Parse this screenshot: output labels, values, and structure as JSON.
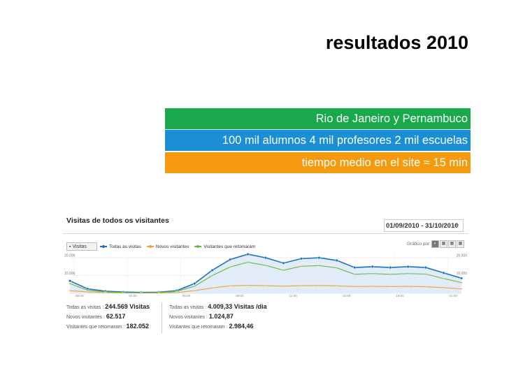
{
  "slide": {
    "title": "resultados 2010",
    "bands": [
      {
        "text": "Rio de Janeiro y Pernambuco",
        "color": "#19a84b"
      },
      {
        "text": "100 mil alumnos 4 mil profesores 2 mil escuelas",
        "color": "#1a8fd6"
      },
      {
        "text": "tiempo medio en el site ≈ 15 min",
        "color": "#f59a0e"
      }
    ]
  },
  "analytics": {
    "title": "Visitas de todos os visitantes",
    "date_range": "01/09/2010 - 31/10/2010",
    "metric_button": "Visitas",
    "legend": [
      {
        "label": "Todas as visitas",
        "color": "#1b72c4"
      },
      {
        "label": "Novos visitantes",
        "color": "#f0a030"
      },
      {
        "label": "Visitantes que retomaram",
        "color": "#6ab83d"
      }
    ],
    "grafico_label": "Gráfico por:",
    "stats_left": [
      {
        "label": "Todas as visitas",
        "value": "244.569 Visitas"
      },
      {
        "label": "Novos visitantes",
        "value": "62.517"
      },
      {
        "label": "Visitantes que retomaram",
        "value": "182.052"
      }
    ],
    "stats_right": [
      {
        "label": "Todas as visitas",
        "value": "4.009,33 Visitas /dia"
      },
      {
        "label": "Novos visitantes",
        "value": "1.024,87"
      },
      {
        "label": "Visitantes que retomaram",
        "value": "2.984,46"
      }
    ]
  },
  "chart_data": {
    "type": "line",
    "y_ticks_left": [
      "20.000",
      "10.000"
    ],
    "y_ticks_right": [
      "20.000",
      "10.000"
    ],
    "x_ticks": [
      "00:00",
      "03:00",
      "06:00",
      "09:00",
      "12:00",
      "15:00",
      "18:00",
      "21:00"
    ],
    "ylim": [
      0,
      22000
    ],
    "series": [
      {
        "name": "Todas as visitas",
        "color": "#1b72c4",
        "values": [
          7000,
          2500,
          1200,
          700,
          500,
          600,
          1500,
          5500,
          13000,
          19000,
          22000,
          20000,
          17000,
          19500,
          20000,
          18500,
          14500,
          15000,
          14500,
          15000,
          14500,
          11500,
          8500
        ]
      },
      {
        "name": "Novos visitantes",
        "color": "#f0a030",
        "values": [
          1500,
          800,
          400,
          300,
          200,
          200,
          400,
          1500,
          3000,
          4200,
          4500,
          4300,
          4000,
          4300,
          4400,
          4200,
          3800,
          3900,
          3800,
          3900,
          3700,
          3200,
          2500
        ]
      },
      {
        "name": "Visitantes que retomaram",
        "color": "#6ab83d",
        "values": [
          5500,
          1700,
          800,
          400,
          300,
          400,
          1100,
          4000,
          10000,
          14800,
          17500,
          15700,
          13000,
          15200,
          15600,
          14300,
          10700,
          11100,
          10700,
          11100,
          10800,
          8300,
          6000
        ]
      }
    ]
  }
}
